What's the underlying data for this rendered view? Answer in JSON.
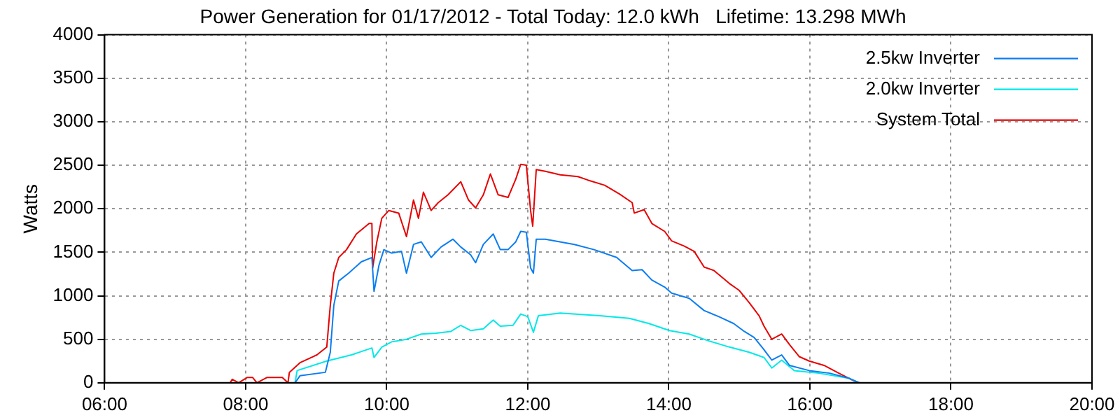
{
  "chart_data": {
    "type": "line",
    "title": "Power Generation for 01/17/2012 - Total Today: 12.0 kWh   Lifetime: 13.298 MWh",
    "ylabel": "Watts",
    "xlim": [
      6,
      20
    ],
    "xticks": [
      {
        "value": 6,
        "label": "06:00"
      },
      {
        "value": 8,
        "label": "08:00"
      },
      {
        "value": 10,
        "label": "10:00"
      },
      {
        "value": 12,
        "label": "12:00"
      },
      {
        "value": 14,
        "label": "14:00"
      },
      {
        "value": 16,
        "label": "16:00"
      },
      {
        "value": 18,
        "label": "18:00"
      },
      {
        "value": 20,
        "label": "20:00"
      }
    ],
    "ylim": [
      0,
      4000
    ],
    "yticks": [
      0,
      500,
      1000,
      1500,
      2000,
      2500,
      3000,
      3500,
      4000
    ],
    "grid": true,
    "legend": "top right",
    "marker": "none",
    "line_style": "solid",
    "series": [
      {
        "name": "2.5kw Inverter",
        "color": "#0a7df2",
        "x": [
          8.7,
          8.77,
          9.13,
          9.2,
          9.25,
          9.32,
          9.46,
          9.64,
          9.79,
          9.82,
          9.89,
          9.96,
          10.07,
          10.21,
          10.28,
          10.38,
          10.49,
          10.63,
          10.77,
          10.94,
          11.05,
          11.19,
          11.26,
          11.37,
          11.51,
          11.61,
          11.72,
          11.83,
          11.9,
          11.98,
          12.04,
          12.08,
          12.12,
          12.25,
          12.66,
          12.94,
          13.26,
          13.48,
          13.62,
          13.76,
          13.94,
          14.04,
          14.29,
          14.5,
          14.71,
          14.92,
          15.07,
          15.21,
          15.35,
          15.46,
          15.6,
          15.71,
          15.99,
          16.28,
          16.56,
          16.7
        ],
        "values": [
          0,
          80,
          120,
          350,
          890,
          1170,
          1260,
          1390,
          1440,
          1050,
          1350,
          1530,
          1490,
          1510,
          1260,
          1590,
          1620,
          1440,
          1560,
          1650,
          1560,
          1470,
          1380,
          1590,
          1710,
          1530,
          1530,
          1620,
          1740,
          1730,
          1320,
          1260,
          1650,
          1650,
          1590,
          1530,
          1440,
          1290,
          1300,
          1180,
          1100,
          1030,
          970,
          830,
          760,
          680,
          590,
          520,
          380,
          260,
          320,
          200,
          140,
          110,
          50,
          0
        ]
      },
      {
        "name": "2.0kw Inverter",
        "color": "#00e8e8",
        "x": [
          8.7,
          8.73,
          9.15,
          9.5,
          9.79,
          9.82,
          9.93,
          10.07,
          10.28,
          10.49,
          10.7,
          10.91,
          11.05,
          11.19,
          11.37,
          11.51,
          11.61,
          11.79,
          11.9,
          12.0,
          12.08,
          12.15,
          12.46,
          13.02,
          13.44,
          13.72,
          14.01,
          14.29,
          14.57,
          14.86,
          15.14,
          15.35,
          15.46,
          15.6,
          15.78,
          16.13,
          16.56,
          16.7
        ],
        "values": [
          0,
          140,
          250,
          320,
          400,
          290,
          410,
          470,
          500,
          560,
          570,
          590,
          660,
          600,
          620,
          720,
          650,
          660,
          790,
          760,
          580,
          770,
          800,
          770,
          740,
          680,
          600,
          560,
          480,
          410,
          350,
          290,
          170,
          260,
          140,
          110,
          50,
          0
        ]
      },
      {
        "name": "System Total",
        "color": "#e80000",
        "x": [
          7.78,
          7.81,
          7.9,
          8.02,
          8.1,
          8.16,
          8.3,
          8.52,
          8.6,
          8.62,
          8.77,
          9.01,
          9.15,
          9.2,
          9.25,
          9.32,
          9.43,
          9.57,
          9.75,
          9.79,
          9.8,
          9.86,
          9.93,
          10.03,
          10.17,
          10.28,
          10.38,
          10.45,
          10.52,
          10.63,
          10.73,
          10.87,
          11.05,
          11.16,
          11.26,
          11.37,
          11.47,
          11.58,
          11.72,
          11.83,
          11.9,
          11.98,
          12.04,
          12.07,
          12.12,
          12.25,
          12.46,
          12.71,
          12.85,
          13.09,
          13.3,
          13.48,
          13.51,
          13.65,
          13.76,
          13.94,
          14.04,
          14.22,
          14.36,
          14.5,
          14.64,
          14.86,
          15.0,
          15.14,
          15.28,
          15.35,
          15.46,
          15.6,
          15.71,
          15.85,
          15.99,
          16.2,
          16.41,
          16.63,
          16.7
        ],
        "values": [
          0,
          40,
          0,
          60,
          60,
          0,
          60,
          60,
          0,
          120,
          230,
          320,
          410,
          890,
          1260,
          1440,
          1530,
          1710,
          1830,
          1830,
          1320,
          1620,
          1890,
          1980,
          1950,
          1680,
          2100,
          1890,
          2190,
          1980,
          2070,
          2160,
          2310,
          2100,
          2010,
          2160,
          2400,
          2160,
          2130,
          2340,
          2510,
          2500,
          1980,
          1800,
          2450,
          2430,
          2390,
          2370,
          2330,
          2270,
          2170,
          2070,
          1950,
          1990,
          1830,
          1740,
          1630,
          1570,
          1510,
          1330,
          1290,
          1140,
          1060,
          920,
          770,
          650,
          500,
          560,
          440,
          300,
          250,
          200,
          110,
          20,
          0
        ]
      }
    ]
  }
}
